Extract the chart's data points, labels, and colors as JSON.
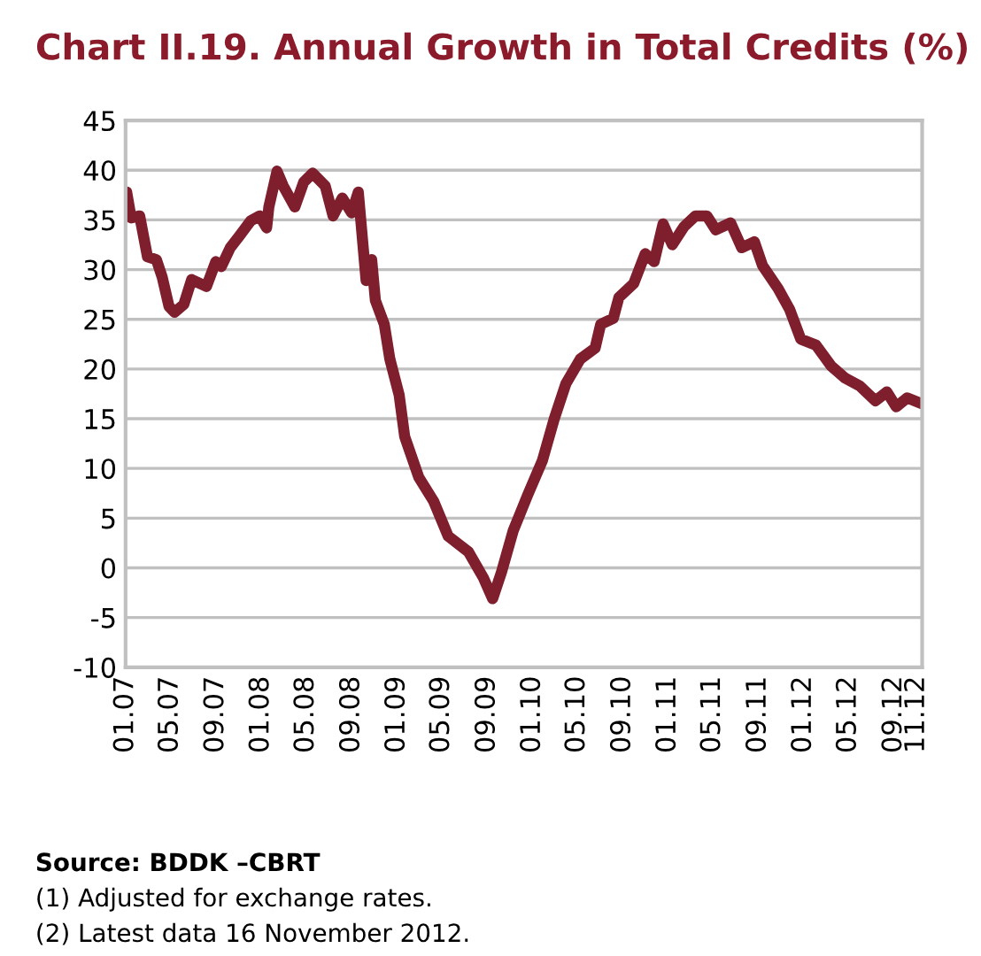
{
  "chart_data": {
    "type": "line",
    "title": "Chart II.19. Annual Growth in Total Credits (%)",
    "x": [
      "2007-01-01",
      "2007-01-04",
      "2007-01-16",
      "2007-02-08",
      "2007-03-01",
      "2007-03-25",
      "2007-04-10",
      "2007-04-28",
      "2007-05-13",
      "2007-06-07",
      "2007-06-28",
      "2007-08-07",
      "2007-09-01",
      "2007-09-16",
      "2007-10-10",
      "2007-11-04",
      "2007-12-04",
      "2007-12-28",
      "2008-01-16",
      "2008-01-22",
      "2008-02-13",
      "2008-03-01",
      "2008-04-01",
      "2008-04-25",
      "2008-05-19",
      "2008-06-22",
      "2008-07-13",
      "2008-08-07",
      "2008-09-01",
      "2008-09-19",
      "2008-10-10",
      "2008-10-25",
      "2008-11-04",
      "2008-11-28",
      "2008-12-13",
      "2009-01-07",
      "2009-01-22",
      "2009-03-01",
      "2009-04-10",
      "2009-05-19",
      "2009-07-13",
      "2009-08-22",
      "2009-09-16",
      "2009-10-10",
      "2009-11-10",
      "2009-12-19",
      "2010-01-28",
      "2010-03-01",
      "2010-04-01",
      "2010-05-10",
      "2010-06-19",
      "2010-07-04",
      "2010-08-07",
      "2010-08-22",
      "2010-10-01",
      "2010-11-01",
      "2010-11-25",
      "2010-12-19",
      "2011-01-13",
      "2011-02-13",
      "2011-03-16",
      "2011-04-16",
      "2011-05-10",
      "2011-06-19",
      "2011-07-19",
      "2011-08-22",
      "2011-09-13",
      "2011-10-25",
      "2011-11-25",
      "2011-12-25",
      "2012-02-04",
      "2012-03-16",
      "2012-04-22",
      "2012-06-01",
      "2012-07-13",
      "2012-08-13",
      "2012-09-07",
      "2012-10-07",
      "2012-11-16"
    ],
    "series": [
      {
        "color": "#7f1f2e",
        "values": [
          36.5,
          37.8,
          35.2,
          35.4,
          31.3,
          31,
          29.2,
          26.3,
          25.7,
          26.5,
          29,
          28.3,
          30.8,
          30.3,
          32.2,
          33.4,
          34.9,
          35.4,
          34.2,
          36.3,
          39.9,
          38.4,
          36.3,
          38.8,
          39.7,
          38.4,
          35.4,
          37.2,
          35.7,
          37.8,
          28.9,
          31,
          26.9,
          24.5,
          21,
          17.4,
          13.2,
          9.1,
          6.7,
          3.2,
          1.6,
          -1,
          -3.1,
          -0.4,
          3.7,
          7.3,
          10.8,
          15,
          18.5,
          21,
          22.1,
          24.5,
          25.1,
          27.2,
          28.6,
          31.6,
          30.8,
          34.6,
          32.5,
          34.3,
          35.4,
          35.4,
          34,
          34.7,
          32.2,
          32.8,
          30.4,
          28.1,
          26,
          23,
          22.4,
          20.3,
          19.1,
          18.3,
          16.8,
          17.7,
          16.2,
          17.1,
          16.5
        ]
      }
    ],
    "xlim": [
      "2007-01-01",
      "2012-11-16"
    ],
    "xticks": [
      {
        "value": "2007-01-01",
        "label": "01.07"
      },
      {
        "value": "2007-05-01",
        "label": "05.07"
      },
      {
        "value": "2007-09-01",
        "label": "09.07"
      },
      {
        "value": "2008-01-01",
        "label": "01.08"
      },
      {
        "value": "2008-05-01",
        "label": "05.08"
      },
      {
        "value": "2008-09-01",
        "label": "09.08"
      },
      {
        "value": "2009-01-01",
        "label": "01.09"
      },
      {
        "value": "2009-05-01",
        "label": "05.09"
      },
      {
        "value": "2009-09-01",
        "label": "09.09"
      },
      {
        "value": "2010-01-01",
        "label": "01.10"
      },
      {
        "value": "2010-05-01",
        "label": "05.10"
      },
      {
        "value": "2010-09-01",
        "label": "09.10"
      },
      {
        "value": "2011-01-01",
        "label": "01.11"
      },
      {
        "value": "2011-05-01",
        "label": "05.11"
      },
      {
        "value": "2011-09-01",
        "label": "09.11"
      },
      {
        "value": "2012-01-01",
        "label": "01.12"
      },
      {
        "value": "2012-05-01",
        "label": "05.12"
      },
      {
        "value": "2012-09-01",
        "label": "09.12"
      },
      {
        "value": "2012-11-01",
        "label": "11.12"
      }
    ],
    "ylim": [
      -10,
      45
    ],
    "yticks": [
      -10,
      -5,
      0,
      5,
      10,
      15,
      20,
      25,
      30,
      35,
      40,
      45
    ],
    "grid": "y",
    "line_style": "solid",
    "annotations": [
      "Source: BDDK –CBRT",
      "(1) Adjusted for exchange rates.",
      "(2) Latest data 16 November 2012."
    ]
  }
}
